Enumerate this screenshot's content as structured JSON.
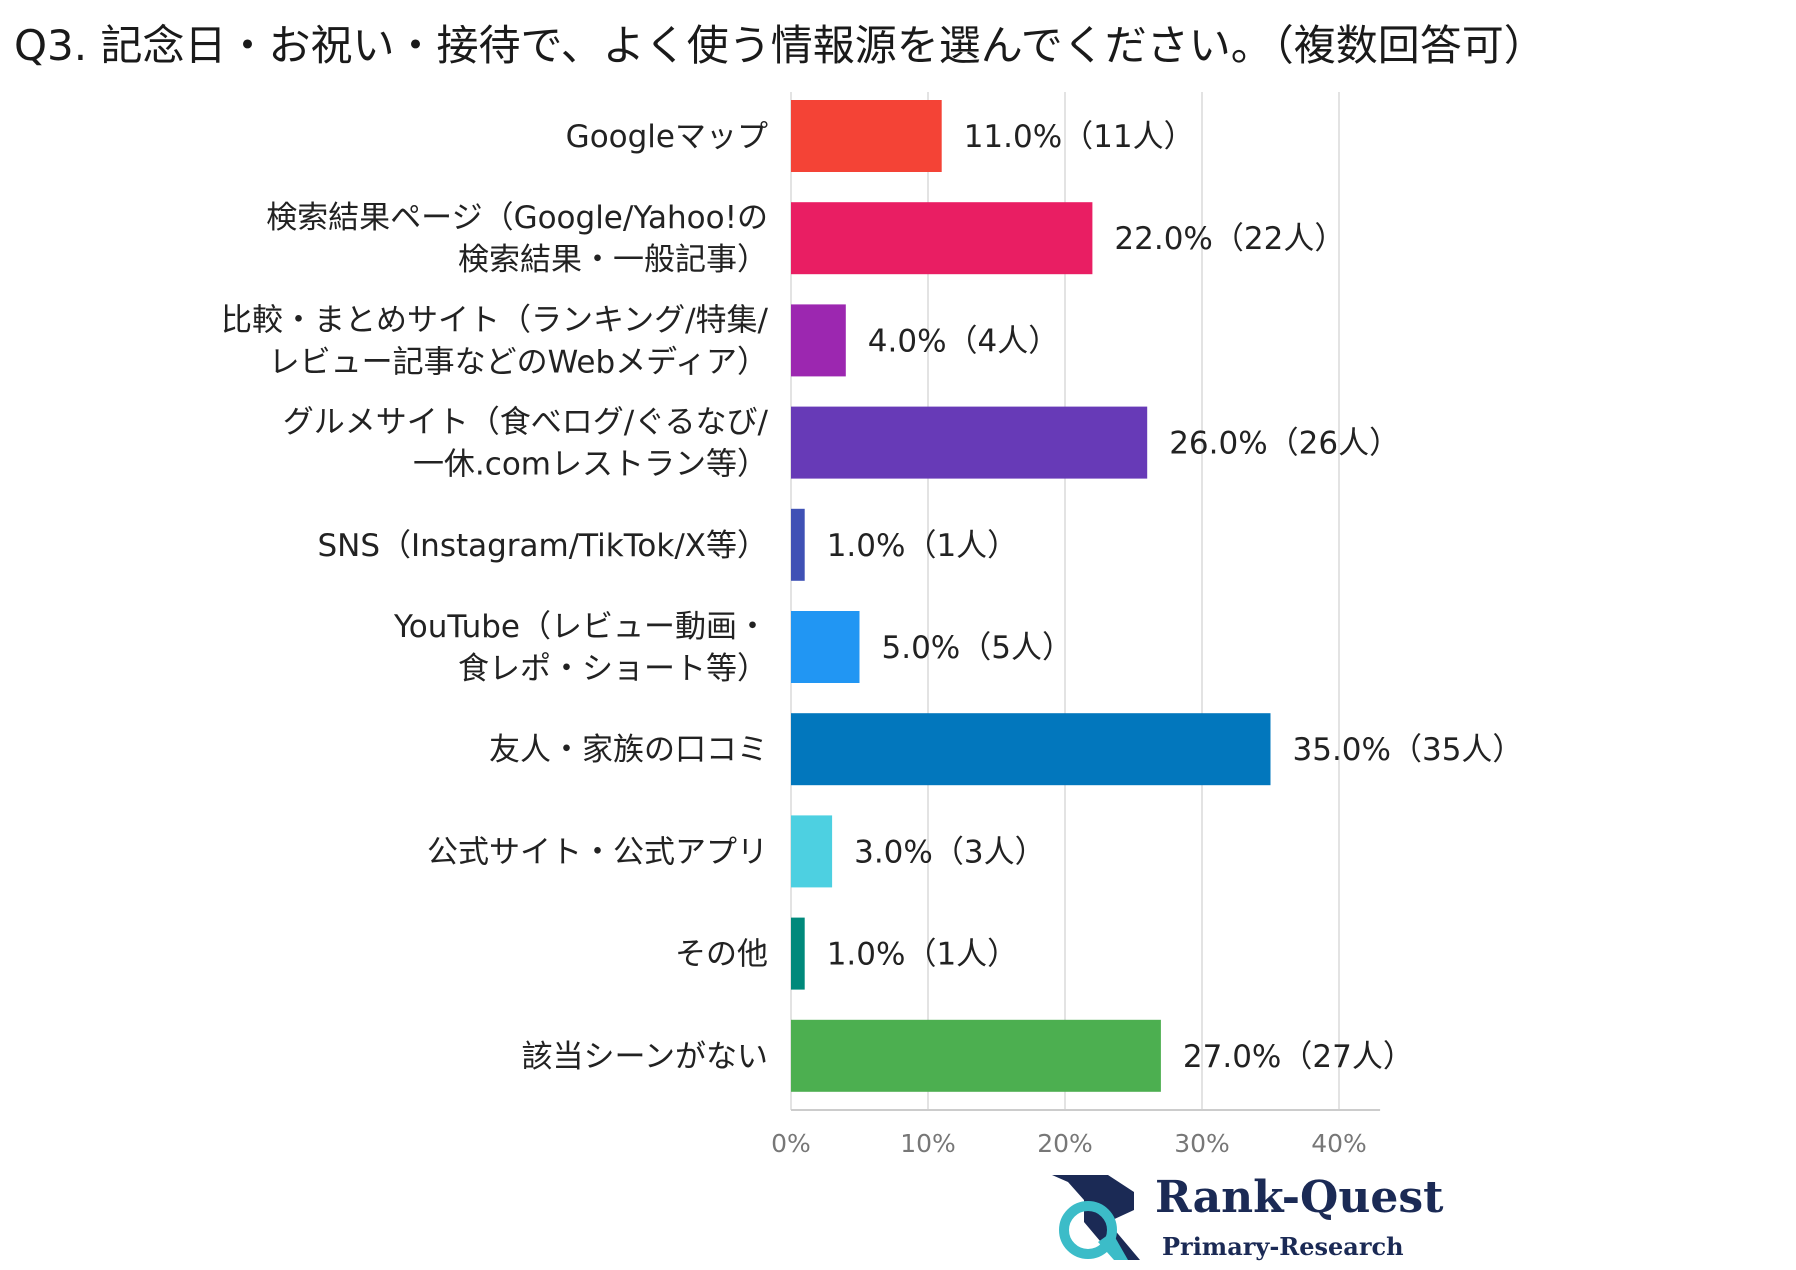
{
  "chart_data": {
    "type": "bar",
    "orientation": "horizontal",
    "title": "Q3. 記念日・お祝い・接待で、よく使う情報源を選んでください。（複数回答可）",
    "categories": [
      [
        "Googleマップ"
      ],
      [
        "検索結果ページ（Google/Yahoo!の",
        "検索結果・一般記事）"
      ],
      [
        "比較・まとめサイト（ランキング/特集/",
        "レビュー記事などのWebメディア）"
      ],
      [
        "グルメサイト（食べログ/ぐるなび/",
        "一休.comレストラン等）"
      ],
      [
        "SNS（Instagram/TikTok/X等）"
      ],
      [
        "YouTube（レビュー動画・",
        "食レポ・ショート等）"
      ],
      [
        "友人・家族の口コミ"
      ],
      [
        "公式サイト・公式アプリ"
      ],
      [
        "その他"
      ],
      [
        "該当シーンがない"
      ]
    ],
    "values": [
      11.0,
      22.0,
      4.0,
      26.0,
      1.0,
      5.0,
      35.0,
      3.0,
      1.0,
      27.0
    ],
    "value_labels": [
      "11.0%（11人）",
      "22.0%（22人）",
      "4.0%（4人）",
      "26.0%（26人）",
      "1.0%（1人）",
      "5.0%（5人）",
      "35.0%（35人）",
      "3.0%（3人）",
      "1.0%（1人）",
      "27.0%（27人）"
    ],
    "colors": [
      "#f44336",
      "#e91e63",
      "#9c27b0",
      "#673ab7",
      "#3f51b5",
      "#2196f3",
      "#0277bd",
      "#4dd0e1",
      "#00897b",
      "#4caf50"
    ],
    "x_ticks": [
      "0%",
      "10%",
      "20%",
      "30%",
      "40%"
    ],
    "xlim": [
      0,
      43
    ],
    "grid": true
  },
  "logo": {
    "name": "Rank-Quest",
    "subtitle": "Primary-Research",
    "accent_color": "#3cbcc8",
    "brand_color": "#1b2a55"
  }
}
